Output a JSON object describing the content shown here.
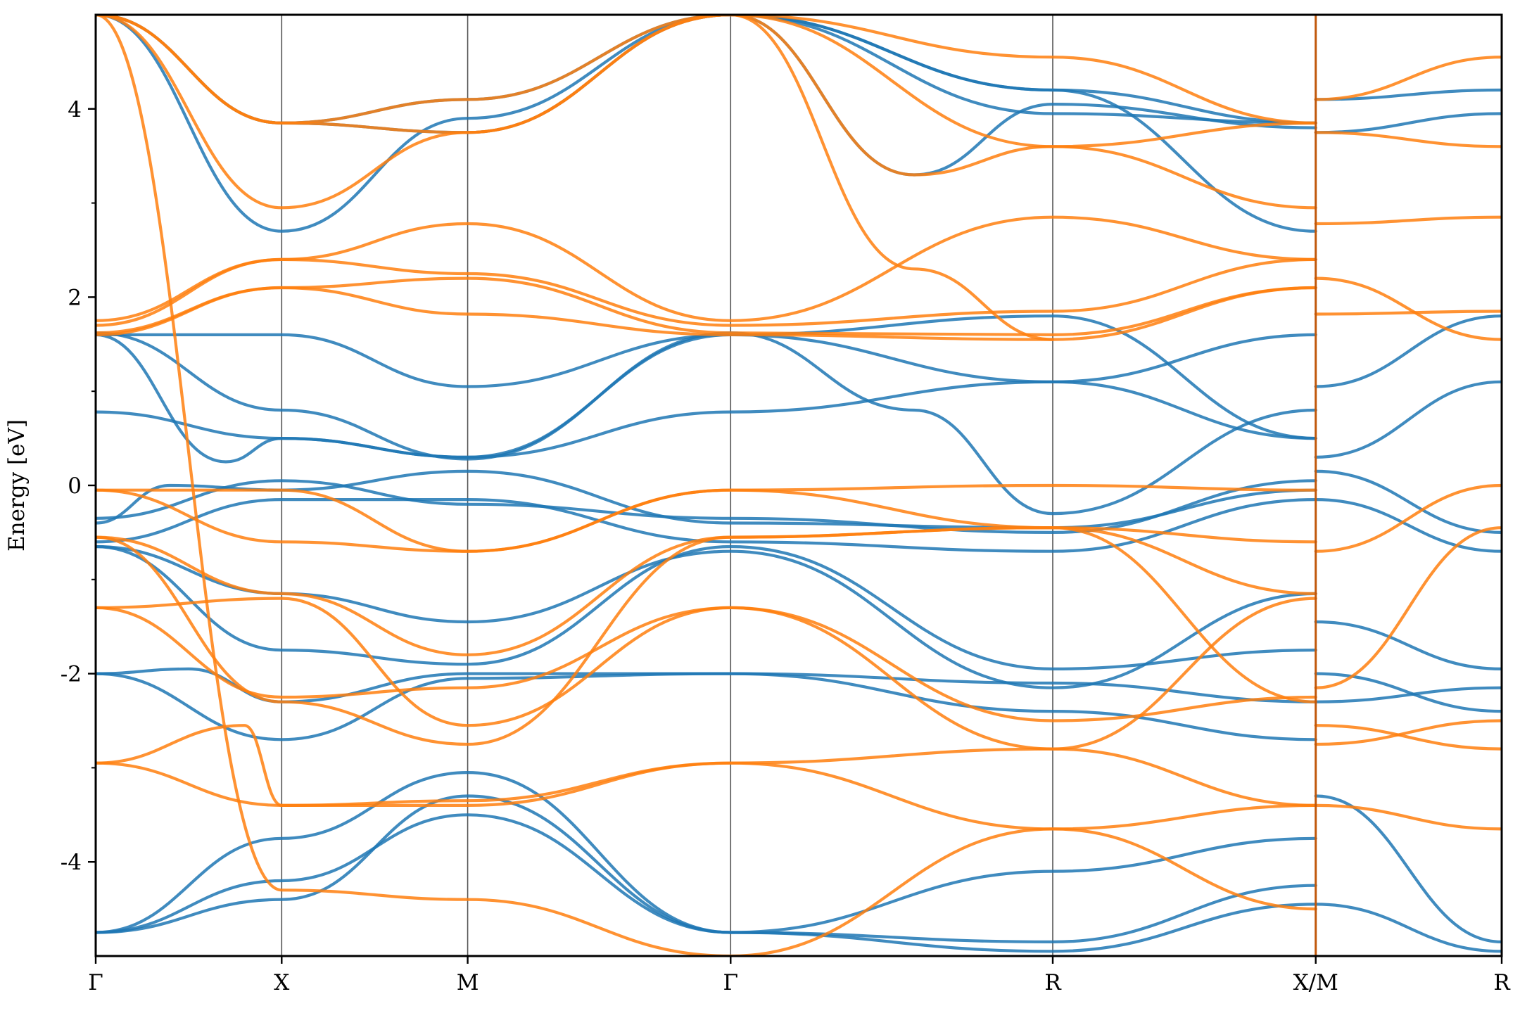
{
  "chart_data": {
    "type": "line",
    "title": "",
    "ylabel": "Energy [eV]",
    "xlabel": "",
    "ylim": [
      -5,
      5
    ],
    "yticks": [
      -4,
      -2,
      0,
      2,
      4
    ],
    "yminor_step": 1,
    "grid": false,
    "legend": "none",
    "kpath": [
      {
        "label": "Γ",
        "x": 0.0
      },
      {
        "label": "X",
        "x": 0.5
      },
      {
        "label": "M",
        "x": 1.0
      },
      {
        "label": "Γ",
        "x": 1.707
      },
      {
        "label": "R",
        "x": 2.573
      },
      {
        "label": "X/M",
        "x": 3.28
      },
      {
        "label": "R",
        "x": 3.78
      }
    ],
    "break_at": 3.28,
    "series": [
      {
        "color": "#1f77b4",
        "bands": [
          [
            [
              0,
              -4.75
            ],
            [
              0.5,
              -4.4
            ],
            [
              1.0,
              -3.3
            ],
            [
              1.707,
              -4.75
            ],
            [
              2.573,
              -4.95
            ],
            [
              3.28,
              -4.45
            ]
          ],
          [
            [
              0,
              -4.75
            ],
            [
              0.5,
              -4.2
            ],
            [
              1.0,
              -3.5
            ],
            [
              1.707,
              -4.75
            ],
            [
              2.573,
              -4.85
            ],
            [
              3.28,
              -4.25
            ]
          ],
          [
            [
              0,
              -4.75
            ],
            [
              0.5,
              -3.75
            ],
            [
              1.0,
              -3.05
            ],
            [
              1.707,
              -4.75
            ],
            [
              2.573,
              -4.1
            ],
            [
              3.28,
              -3.75
            ]
          ],
          [
            [
              0,
              -2.0
            ],
            [
              0.5,
              -2.7
            ],
            [
              1.0,
              -2.05
            ],
            [
              1.707,
              -2.0
            ],
            [
              2.573,
              -2.4
            ],
            [
              3.28,
              -2.7
            ]
          ],
          [
            [
              0,
              -2.0
            ],
            [
              0.25,
              -1.95
            ],
            [
              0.5,
              -2.3
            ],
            [
              1.0,
              -2.0
            ],
            [
              1.707,
              -2.0
            ],
            [
              2.573,
              -2.1
            ],
            [
              3.28,
              -2.3
            ]
          ],
          [
            [
              0,
              -0.65
            ],
            [
              0.5,
              -1.75
            ],
            [
              1.0,
              -1.9
            ],
            [
              1.707,
              -0.65
            ],
            [
              2.573,
              -1.95
            ],
            [
              3.28,
              -1.75
            ]
          ],
          [
            [
              0,
              -0.65
            ],
            [
              0.5,
              -1.15
            ],
            [
              1.0,
              -1.45
            ],
            [
              1.707,
              -0.7
            ],
            [
              2.573,
              -2.15
            ],
            [
              3.28,
              -1.15
            ]
          ],
          [
            [
              0,
              -0.6
            ],
            [
              0.5,
              -0.15
            ],
            [
              1.0,
              -0.15
            ],
            [
              1.707,
              -0.6
            ],
            [
              2.573,
              -0.7
            ],
            [
              3.28,
              -0.15
            ]
          ],
          [
            [
              0,
              -0.4
            ],
            [
              0.2,
              0.0
            ],
            [
              0.5,
              -0.05
            ],
            [
              1.0,
              0.15
            ],
            [
              1.707,
              -0.4
            ],
            [
              2.573,
              -0.45
            ],
            [
              3.28,
              -0.05
            ]
          ],
          [
            [
              0,
              -0.35
            ],
            [
              0.5,
              0.05
            ],
            [
              1.0,
              -0.2
            ],
            [
              1.707,
              -0.35
            ],
            [
              2.573,
              -0.5
            ],
            [
              3.28,
              0.05
            ]
          ],
          [
            [
              0,
              0.78
            ],
            [
              0.5,
              0.5
            ],
            [
              1.0,
              0.3
            ],
            [
              1.707,
              0.78
            ],
            [
              2.573,
              1.1
            ],
            [
              3.28,
              0.5
            ]
          ],
          [
            [
              0,
              1.6
            ],
            [
              0.35,
              0.25
            ],
            [
              0.5,
              0.5
            ],
            [
              1.0,
              0.3
            ],
            [
              1.707,
              1.6
            ],
            [
              2.573,
              1.8
            ],
            [
              3.28,
              0.5
            ]
          ],
          [
            [
              0,
              1.6
            ],
            [
              0.5,
              1.6
            ],
            [
              1.0,
              1.05
            ],
            [
              1.707,
              1.6
            ],
            [
              2.573,
              1.1
            ],
            [
              3.28,
              1.6
            ]
          ],
          [
            [
              0,
              1.62
            ],
            [
              0.5,
              0.8
            ],
            [
              1.0,
              0.28
            ],
            [
              1.707,
              1.62
            ],
            [
              2.2,
              0.8
            ],
            [
              2.573,
              -0.3
            ],
            [
              3.28,
              0.8
            ]
          ],
          [
            [
              0,
              5.0
            ],
            [
              0.5,
              2.7
            ],
            [
              1.0,
              3.9
            ],
            [
              1.707,
              5.0
            ],
            [
              2.573,
              4.2
            ],
            [
              3.28,
              2.7
            ]
          ],
          [
            [
              0,
              5.0
            ],
            [
              0.5,
              3.85
            ],
            [
              1.0,
              3.75
            ],
            [
              1.707,
              5.0
            ],
            [
              2.573,
              3.95
            ],
            [
              3.28,
              3.85
            ]
          ],
          [
            [
              1.707,
              5.0
            ],
            [
              2.2,
              3.3
            ],
            [
              2.573,
              4.05
            ],
            [
              3.28,
              3.8
            ]
          ],
          [
            [
              0,
              5.0
            ],
            [
              0.5,
              3.85
            ],
            [
              1.0,
              4.1
            ],
            [
              1.707,
              5.0
            ],
            [
              2.573,
              4.2
            ],
            [
              3.28,
              3.85
            ]
          ],
          [
            [
              3.28,
              -4.45
            ],
            [
              3.78,
              -4.95
            ]
          ],
          [
            [
              3.28,
              -3.3
            ],
            [
              3.78,
              -4.85
            ]
          ],
          [
            [
              3.28,
              -2.3
            ],
            [
              3.78,
              -2.15
            ]
          ],
          [
            [
              3.28,
              -2.0
            ],
            [
              3.78,
              -2.4
            ]
          ],
          [
            [
              3.28,
              -1.45
            ],
            [
              3.78,
              -1.95
            ]
          ],
          [
            [
              3.28,
              -0.15
            ],
            [
              3.78,
              -0.7
            ]
          ],
          [
            [
              3.28,
              0.15
            ],
            [
              3.78,
              -0.5
            ]
          ],
          [
            [
              3.28,
              0.3
            ],
            [
              3.78,
              1.1
            ]
          ],
          [
            [
              3.28,
              1.05
            ],
            [
              3.78,
              1.8
            ]
          ],
          [
            [
              3.28,
              3.75
            ],
            [
              3.78,
              3.95
            ]
          ],
          [
            [
              3.28,
              4.1
            ],
            [
              3.78,
              4.2
            ]
          ]
        ]
      },
      {
        "color": "#ff7f0e",
        "bands": [
          [
            [
              0,
              -2.95
            ],
            [
              0.5,
              -3.4
            ],
            [
              1.0,
              -3.35
            ],
            [
              1.707,
              -2.95
            ],
            [
              2.573,
              -3.65
            ],
            [
              3.28,
              -3.4
            ]
          ],
          [
            [
              0,
              -2.95
            ],
            [
              0.4,
              -2.55
            ],
            [
              0.5,
              -3.4
            ],
            [
              1.0,
              -3.4
            ],
            [
              1.707,
              -2.95
            ],
            [
              2.573,
              -2.8
            ],
            [
              3.28,
              -3.4
            ]
          ],
          [
            [
              0,
              -1.3
            ],
            [
              0.5,
              -2.25
            ],
            [
              1.0,
              -2.15
            ],
            [
              1.707,
              -1.3
            ],
            [
              2.573,
              -2.5
            ],
            [
              3.28,
              -2.25
            ]
          ],
          [
            [
              0,
              -1.3
            ],
            [
              0.5,
              -1.2
            ],
            [
              1.0,
              -2.55
            ],
            [
              1.707,
              -1.3
            ],
            [
              2.573,
              -2.8
            ],
            [
              3.28,
              -1.2
            ]
          ],
          [
            [
              0,
              -0.55
            ],
            [
              0.5,
              -2.3
            ],
            [
              1.0,
              -2.75
            ],
            [
              1.707,
              -0.55
            ],
            [
              2.573,
              -0.45
            ],
            [
              3.28,
              -2.3
            ]
          ],
          [
            [
              0,
              -0.55
            ],
            [
              0.5,
              -1.15
            ],
            [
              1.0,
              -1.8
            ],
            [
              1.707,
              -0.55
            ],
            [
              2.573,
              -0.45
            ],
            [
              3.28,
              -1.15
            ]
          ],
          [
            [
              0,
              -0.05
            ],
            [
              0.5,
              -0.05
            ],
            [
              1.0,
              -0.7
            ],
            [
              1.707,
              -0.05
            ],
            [
              2.573,
              0.0
            ],
            [
              3.28,
              -0.05
            ]
          ],
          [
            [
              0,
              -0.05
            ],
            [
              0.5,
              -0.6
            ],
            [
              1.0,
              -0.7
            ],
            [
              1.707,
              -0.05
            ],
            [
              2.573,
              -0.45
            ],
            [
              3.28,
              -0.6
            ]
          ],
          [
            [
              0,
              1.6
            ],
            [
              0.5,
              2.1
            ],
            [
              1.0,
              1.82
            ],
            [
              1.707,
              1.6
            ],
            [
              2.573,
              1.55
            ],
            [
              3.28,
              2.1
            ]
          ],
          [
            [
              0,
              1.62
            ],
            [
              0.5,
              2.1
            ],
            [
              1.0,
              2.2
            ],
            [
              1.707,
              1.62
            ],
            [
              2.573,
              1.6
            ],
            [
              3.28,
              2.1
            ]
          ],
          [
            [
              0,
              1.7
            ],
            [
              0.5,
              2.4
            ],
            [
              1.0,
              2.25
            ],
            [
              1.707,
              1.7
            ],
            [
              2.573,
              1.85
            ],
            [
              3.28,
              2.4
            ]
          ],
          [
            [
              0,
              1.75
            ],
            [
              0.5,
              2.4
            ],
            [
              1.0,
              2.78
            ],
            [
              1.707,
              1.75
            ],
            [
              2.573,
              2.85
            ],
            [
              3.28,
              2.4
            ]
          ],
          [
            [
              0,
              5.0
            ],
            [
              0.5,
              2.95
            ],
            [
              1.0,
              3.75
            ],
            [
              1.707,
              5.0
            ],
            [
              2.573,
              3.6
            ],
            [
              3.28,
              2.95
            ]
          ],
          [
            [
              0,
              5.0
            ],
            [
              0.5,
              3.85
            ],
            [
              1.0,
              4.1
            ],
            [
              1.707,
              5.0
            ],
            [
              2.573,
              4.55
            ],
            [
              3.28,
              3.85
            ]
          ],
          [
            [
              0,
              5.0
            ],
            [
              0.5,
              3.85
            ],
            [
              1.0,
              3.75
            ],
            [
              1.707,
              5.0
            ],
            [
              2.2,
              3.3
            ],
            [
              2.573,
              3.6
            ],
            [
              3.28,
              3.85
            ]
          ],
          [
            [
              1.707,
              5.0
            ],
            [
              2.2,
              2.3
            ],
            [
              2.573,
              1.55
            ]
          ],
          [
            [
              0,
              5.0
            ],
            [
              0.5,
              -4.3
            ],
            [
              1.0,
              -4.4
            ],
            [
              1.707,
              -5.0
            ]
          ],
          [
            [
              1.707,
              -5.0
            ],
            [
              2.573,
              -3.65
            ],
            [
              3.28,
              -4.5
            ]
          ],
          [
            [
              3.28,
              -3.4
            ],
            [
              3.78,
              -3.65
            ]
          ],
          [
            [
              3.28,
              -2.55
            ],
            [
              3.78,
              -2.8
            ]
          ],
          [
            [
              3.28,
              -2.75
            ],
            [
              3.78,
              -2.5
            ]
          ],
          [
            [
              3.28,
              -2.15
            ],
            [
              3.78,
              -0.45
            ]
          ],
          [
            [
              3.28,
              -0.7
            ],
            [
              3.78,
              0.0
            ]
          ],
          [
            [
              3.28,
              1.82
            ],
            [
              3.78,
              1.85
            ]
          ],
          [
            [
              3.28,
              2.2
            ],
            [
              3.78,
              1.55
            ]
          ],
          [
            [
              3.28,
              2.78
            ],
            [
              3.78,
              2.85
            ]
          ],
          [
            [
              3.28,
              3.75
            ],
            [
              3.78,
              3.6
            ]
          ],
          [
            [
              3.28,
              4.1
            ],
            [
              3.78,
              4.55
            ]
          ]
        ]
      }
    ]
  }
}
